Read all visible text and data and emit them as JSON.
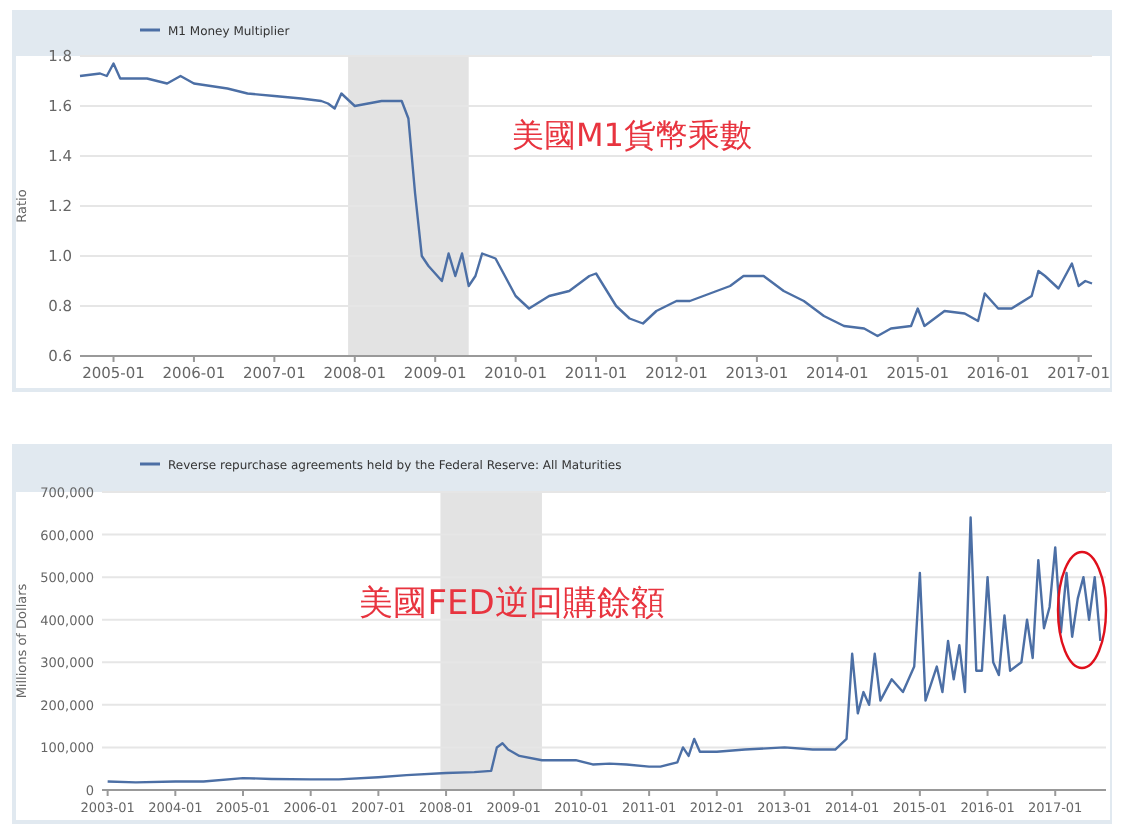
{
  "chart_data": [
    {
      "type": "line",
      "ylabel": "Ratio",
      "legend": "top left",
      "grid": "y",
      "xlim": [
        "2004-08",
        "2017-03"
      ],
      "ylim": [
        0.6,
        1.8
      ],
      "xticks": [
        "2005-01",
        "2006-01",
        "2007-01",
        "2008-01",
        "2009-01",
        "2010-01",
        "2011-01",
        "2012-01",
        "2013-01",
        "2014-01",
        "2015-01",
        "2016-01",
        "2017-01"
      ],
      "yticks": [
        0.6,
        0.8,
        {
          "value": 1.0,
          "label": "1.0"
        },
        1.2,
        1.4,
        1.6,
        1.8
      ],
      "bands": [
        {
          "axis": "x",
          "from": "2007-12",
          "to": "2009-06",
          "color": "#e3e3e3"
        }
      ],
      "annotations": [
        "美國M1貨幣乘數"
      ],
      "series": [
        {
          "name": "M1 Money Multiplier",
          "color": "#4c6fa5",
          "x": [
            "2004-08",
            "2004-11",
            "2004-12",
            "2005-01",
            "2005-02",
            "2005-06",
            "2005-09",
            "2005-11",
            "2006-01",
            "2006-06",
            "2006-09",
            "2007-01",
            "2007-05",
            "2007-08",
            "2007-09",
            "2007-10",
            "2007-11",
            "2008-01",
            "2008-05",
            "2008-08",
            "2008-09",
            "2008-10",
            "2008-11",
            "2008-12",
            "2009-02",
            "2009-03",
            "2009-04",
            "2009-05",
            "2009-06",
            "2009-07",
            "2009-08",
            "2009-10",
            "2010-01",
            "2010-03",
            "2010-06",
            "2010-09",
            "2010-12",
            "2011-01",
            "2011-04",
            "2011-06",
            "2011-08",
            "2011-10",
            "2012-01",
            "2012-03",
            "2012-06",
            "2012-09",
            "2012-11",
            "2013-02",
            "2013-05",
            "2013-08",
            "2013-11",
            "2014-02",
            "2014-05",
            "2014-07",
            "2014-09",
            "2014-12",
            "2015-01",
            "2015-02",
            "2015-05",
            "2015-08",
            "2015-10",
            "2015-11",
            "2016-01",
            "2016-03",
            "2016-06",
            "2016-07",
            "2016-08",
            "2016-10",
            "2016-12",
            "2017-01",
            "2017-02",
            "2017-03"
          ],
          "values": [
            1.72,
            1.73,
            1.72,
            1.77,
            1.71,
            1.71,
            1.69,
            1.72,
            1.69,
            1.67,
            1.65,
            1.64,
            1.63,
            1.62,
            1.61,
            1.59,
            1.65,
            1.6,
            1.62,
            1.62,
            1.55,
            1.25,
            1.0,
            0.96,
            0.9,
            1.01,
            0.92,
            1.01,
            0.88,
            0.92,
            1.01,
            0.99,
            0.84,
            0.79,
            0.84,
            0.86,
            0.92,
            0.93,
            0.8,
            0.75,
            0.73,
            0.78,
            0.82,
            0.82,
            0.85,
            0.88,
            0.92,
            0.92,
            0.86,
            0.82,
            0.76,
            0.72,
            0.71,
            0.68,
            0.71,
            0.72,
            0.79,
            0.72,
            0.78,
            0.77,
            0.74,
            0.85,
            0.79,
            0.79,
            0.84,
            0.94,
            0.92,
            0.87,
            0.97,
            0.88,
            0.9,
            0.89
          ]
        }
      ]
    },
    {
      "type": "line",
      "ylabel": "Millions of Dollars",
      "legend": "top left",
      "grid": "y",
      "xlim": [
        "2002-12",
        "2017-10"
      ],
      "ylim": [
        0,
        700000
      ],
      "xticks": [
        "2003-01",
        "2004-01",
        "2005-01",
        "2006-01",
        "2007-01",
        "2008-01",
        "2009-01",
        "2010-01",
        "2011-01",
        "2012-01",
        "2013-01",
        "2014-01",
        "2015-01",
        "2016-01",
        "2017-01"
      ],
      "yticks": [
        0,
        {
          "value": 100000,
          "label": "100,000"
        },
        {
          "value": 200000,
          "label": "200,000"
        },
        {
          "value": 300000,
          "label": "300,000"
        },
        {
          "value": 400000,
          "label": "400,000"
        },
        {
          "value": 500000,
          "label": "500,000"
        },
        {
          "value": 600000,
          "label": "600,000"
        },
        {
          "value": 700000,
          "label": "700,000"
        }
      ],
      "bands": [
        {
          "axis": "x",
          "from": "2007-12",
          "to": "2009-06",
          "color": "#e3e3e3"
        }
      ],
      "annotations": [
        "美國FED逆回購餘額"
      ],
      "series": [
        {
          "name": "Reverse repurchase agreements held by the Federal Reserve: All Maturities",
          "color": "#4c6fa5",
          "x": [
            "2003-01",
            "2003-06",
            "2004-01",
            "2004-06",
            "2005-01",
            "2005-06",
            "2006-01",
            "2006-06",
            "2007-01",
            "2007-06",
            "2008-01",
            "2008-06",
            "2008-09",
            "2008-10",
            "2008-11",
            "2008-12",
            "2009-02",
            "2009-06",
            "2009-12",
            "2010-03",
            "2010-06",
            "2010-09",
            "2011-01",
            "2011-03",
            "2011-06",
            "2011-07",
            "2011-08",
            "2011-09",
            "2011-10",
            "2012-01",
            "2012-06",
            "2013-01",
            "2013-06",
            "2013-10",
            "2013-12",
            "2014-01",
            "2014-02",
            "2014-03",
            "2014-04",
            "2014-05",
            "2014-06",
            "2014-08",
            "2014-10",
            "2014-12",
            "2015-01",
            "2015-02",
            "2015-04",
            "2015-05",
            "2015-06",
            "2015-07",
            "2015-08",
            "2015-09",
            "2015-10",
            "2015-11",
            "2015-12",
            "2016-01",
            "2016-02",
            "2016-03",
            "2016-04",
            "2016-05",
            "2016-07",
            "2016-08",
            "2016-09",
            "2016-10",
            "2016-11",
            "2016-12",
            "2017-01",
            "2017-02",
            "2017-03",
            "2017-04",
            "2017-05",
            "2017-06",
            "2017-07",
            "2017-08",
            "2017-09"
          ],
          "values": [
            20000,
            18000,
            20000,
            20000,
            28000,
            26000,
            25000,
            25000,
            30000,
            35000,
            40000,
            42000,
            45000,
            100000,
            110000,
            95000,
            80000,
            70000,
            70000,
            60000,
            62000,
            60000,
            55000,
            55000,
            65000,
            100000,
            80000,
            120000,
            90000,
            90000,
            95000,
            100000,
            95000,
            95000,
            120000,
            320000,
            180000,
            230000,
            200000,
            320000,
            210000,
            260000,
            230000,
            290000,
            510000,
            210000,
            290000,
            230000,
            350000,
            260000,
            340000,
            230000,
            640000,
            280000,
            280000,
            500000,
            300000,
            270000,
            410000,
            280000,
            300000,
            400000,
            310000,
            540000,
            380000,
            430000,
            570000,
            370000,
            510000,
            360000,
            450000,
            500000,
            400000,
            500000,
            350000
          ]
        }
      ]
    }
  ]
}
